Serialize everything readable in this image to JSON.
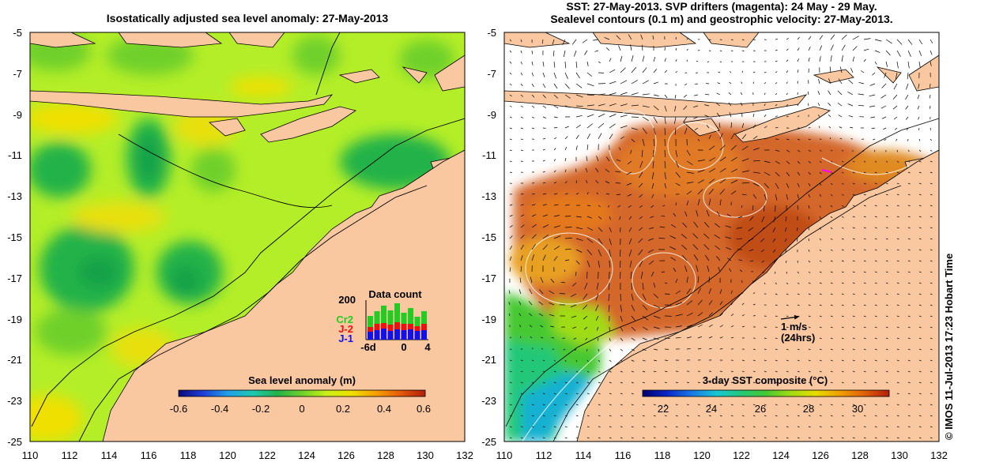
{
  "left_panel": {
    "title": "Isostatically adjusted sea level anomaly: 27-May-2013",
    "colorbar": {
      "title": "Sea level anomaly (m)",
      "ticks": [
        "-0.6",
        "-0.4",
        "-0.2",
        "0",
        "0.2",
        "0.4",
        "0.6"
      ],
      "colors": [
        "#0b0b7a",
        "#1f3fd6",
        "#1fa0e8",
        "#1ec8b0",
        "#23b24a",
        "#6fd02a",
        "#c8f018",
        "#f0e000",
        "#f5a000",
        "#e45a0a",
        "#b21e0a"
      ]
    },
    "inset": {
      "title": "Data count",
      "y_max_label": "200",
      "series_labels": [
        {
          "text": "Cr2",
          "color": "#22cc22"
        },
        {
          "text": "J-2",
          "color": "#ee1111"
        },
        {
          "text": "J-1",
          "color": "#1111ee"
        }
      ],
      "x_labels": [
        "-6d",
        "0",
        "4"
      ]
    }
  },
  "right_panel": {
    "title_line1": "SST: 27-May-2013. SVP drifters (magenta): 24 May - 29 May.",
    "title_line2": "Sealevel contours (0.1 m) and geostrophic velocity: 27-May-2013.",
    "scale_arrow_label1": "1 m/s",
    "scale_arrow_label2": "(24hrs)",
    "colorbar": {
      "title": "3-day SST composite (°C)",
      "ticks": [
        "22",
        "24",
        "26",
        "28",
        "30"
      ],
      "colors": [
        "#00006e",
        "#0a28c8",
        "#1a78e6",
        "#19c8d2",
        "#23c878",
        "#46c832",
        "#a0dc14",
        "#e6dc00",
        "#f0a000",
        "#e0600a",
        "#b41e0a"
      ]
    }
  },
  "axes": {
    "lat_labels": [
      "-5",
      "-7",
      "-9",
      "-11",
      "-13",
      "-15",
      "-17",
      "-19",
      "-21",
      "-23",
      "-25"
    ],
    "lon_labels": [
      "110",
      "112",
      "114",
      "116",
      "118",
      "120",
      "122",
      "124",
      "126",
      "128",
      "130",
      "132"
    ]
  },
  "credit": "© IMOS 11-Jul-2013 17:23 Hobart Time",
  "colors": {
    "land": "#fac8a0",
    "sla_base": "#b4ee28",
    "sst_base": "#d4682a",
    "contour": "#000000"
  }
}
